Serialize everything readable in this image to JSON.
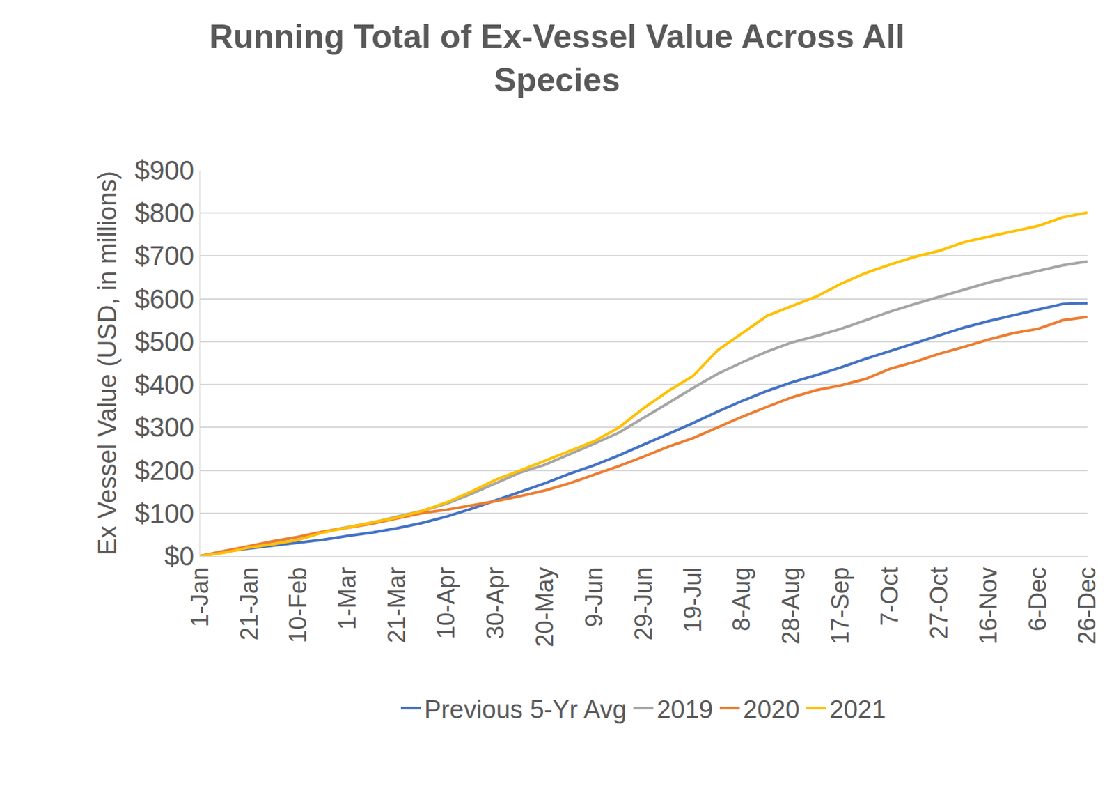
{
  "chart_data": {
    "type": "line",
    "title": "Running Total of Ex-Vessel Value Across All Species",
    "y_label": "Ex Vessel Value (USD, in millions)",
    "categories": [
      "1-Jan",
      null,
      "21-Jan",
      null,
      "10-Feb",
      null,
      "1-Mar",
      null,
      "21-Mar",
      null,
      "10-Apr",
      null,
      "30-Apr",
      null,
      "20-May",
      null,
      "9-Jun",
      null,
      "29-Jun",
      null,
      "19-Jul",
      null,
      "8-Aug",
      null,
      "28-Aug",
      null,
      "17-Sep",
      null,
      "7-Oct",
      null,
      "27-Oct",
      null,
      "16-Nov",
      null,
      "6-Dec",
      null,
      "26-Dec"
    ],
    "series": [
      {
        "name": "Previous 5-Yr Avg",
        "color": "#4472C4",
        "values": [
          0,
          10,
          18,
          25,
          32,
          38,
          47,
          55,
          65,
          77,
          92,
          110,
          130,
          150,
          170,
          192,
          212,
          235,
          260,
          285,
          310,
          337,
          362,
          385,
          405,
          422,
          440,
          460,
          478,
          497,
          515,
          533,
          548,
          562,
          575,
          588,
          590
        ]
      },
      {
        "name": "2019",
        "color": "#A5A5A5",
        "values": [
          0,
          12,
          22,
          33,
          45,
          57,
          68,
          78,
          92,
          105,
          122,
          145,
          170,
          195,
          213,
          237,
          262,
          288,
          322,
          357,
          392,
          425,
          452,
          477,
          498,
          513,
          530,
          550,
          570,
          588,
          605,
          622,
          638,
          652,
          665,
          678,
          687
        ]
      },
      {
        "name": "2020",
        "color": "#ED7D31",
        "values": [
          0,
          12,
          24,
          35,
          45,
          57,
          66,
          76,
          88,
          100,
          108,
          118,
          128,
          140,
          153,
          170,
          190,
          210,
          232,
          255,
          275,
          300,
          325,
          348,
          370,
          387,
          398,
          413,
          437,
          453,
          472,
          488,
          505,
          520,
          530,
          550,
          558
        ]
      },
      {
        "name": "2021",
        "color": "#FFC000",
        "values": [
          0,
          8,
          20,
          28,
          38,
          55,
          67,
          78,
          90,
          105,
          125,
          150,
          178,
          200,
          222,
          245,
          268,
          300,
          345,
          385,
          420,
          480,
          520,
          560,
          583,
          605,
          635,
          660,
          680,
          698,
          712,
          732,
          745,
          757,
          770,
          790,
          801
        ]
      }
    ],
    "ylim": [
      0,
      900
    ],
    "yticks": [
      {
        "value": 0,
        "label": "$0"
      },
      {
        "value": 100,
        "label": "$100"
      },
      {
        "value": 200,
        "label": "$200"
      },
      {
        "value": 300,
        "label": "$300"
      },
      {
        "value": 400,
        "label": "$400"
      },
      {
        "value": 500,
        "label": "$500"
      },
      {
        "value": 600,
        "label": "$600"
      },
      {
        "value": 700,
        "label": "$700"
      },
      {
        "value": 800,
        "label": "$800"
      },
      {
        "value": 900,
        "label": "$900"
      }
    ],
    "grid": true,
    "legend": "bottom"
  }
}
